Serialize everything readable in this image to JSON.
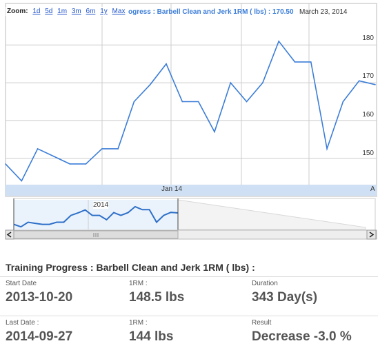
{
  "zoom": {
    "label": "Zoom:",
    "options": [
      "1d",
      "5d",
      "1m",
      "3m",
      "6m",
      "1y",
      "Max"
    ]
  },
  "legend": {
    "series_text": "ogress : Barbell Clean and Jerk 1RM ( lbs) : 170.50",
    "date": "March 23, 2014"
  },
  "chart_data": {
    "type": "line",
    "x_tick_labels": [
      "Jan 14",
      "A"
    ],
    "y_ticks": [
      150,
      160,
      170,
      180
    ],
    "ylim": [
      143,
      191
    ],
    "navigator_label": "2014",
    "series": [
      {
        "values": [
          148.5,
          144,
          152.5,
          150.5,
          148.5,
          148.5,
          152.5,
          152.5,
          165,
          169.5,
          175,
          165,
          165,
          157,
          170,
          165,
          170,
          181,
          175.5,
          175.5,
          152.5,
          165,
          170.5,
          169.5
        ]
      }
    ],
    "colors": {
      "line": "#3b7dd8",
      "grid": "#cccccc",
      "axis_band": "#cfe0f5"
    }
  },
  "stats": {
    "title": "Training Progress : Barbell Clean and Jerk 1RM ( lbs) :",
    "row1": [
      {
        "label": "Start Date",
        "value": "2013-10-20"
      },
      {
        "label": "1RM :",
        "value": "148.5 lbs"
      },
      {
        "label": "Duration",
        "value": "343 Day(s)"
      }
    ],
    "row2": [
      {
        "label": "Last Date :",
        "value": "2014-09-27"
      },
      {
        "label": "1RM :",
        "value": "144 lbs"
      },
      {
        "label": "Result",
        "value": "Decrease -3.0 %"
      }
    ]
  }
}
